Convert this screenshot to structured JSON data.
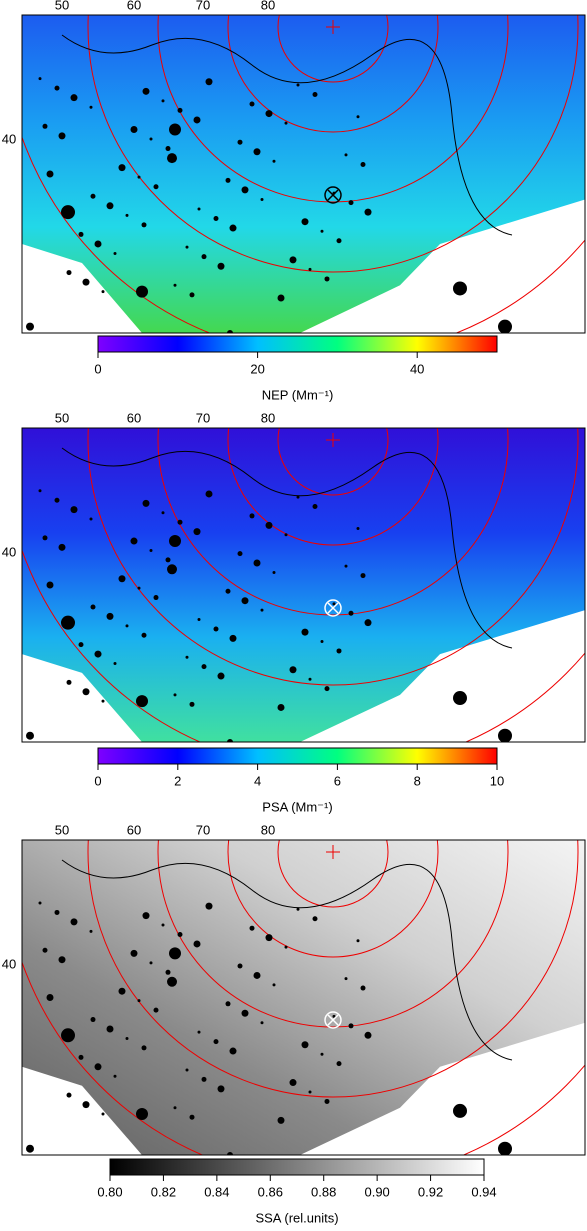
{
  "panels": [
    {
      "lon_labels": [
        "50",
        "60",
        "70",
        "80"
      ],
      "lat_label": "40",
      "colorbar": {
        "label": "NEP (Mm⁻¹)",
        "range": [
          0,
          50
        ],
        "ticks": [
          0,
          20,
          40
        ],
        "colors": [
          "#7f00ff",
          "#0000ff",
          "#00bfff",
          "#00ff80",
          "#ffff00",
          "#ff0000"
        ]
      }
    },
    {
      "lon_labels": [
        "50",
        "60",
        "70",
        "80"
      ],
      "lat_label": "40",
      "colorbar": {
        "label": "PSA (Mm⁻¹)",
        "range": [
          0,
          10
        ],
        "ticks": [
          0,
          2,
          4,
          6,
          8,
          10
        ],
        "colors": [
          "#7f00ff",
          "#0000ff",
          "#00bfff",
          "#00ff80",
          "#ffff00",
          "#ff0000"
        ]
      }
    },
    {
      "lon_labels": [
        "50",
        "60",
        "70",
        "80"
      ],
      "lat_label": "40",
      "colorbar": {
        "label": "SSA (rel.units)",
        "range": [
          0.8,
          0.94
        ],
        "ticks": [
          {
            "value": 0.8,
            "label": "0.80"
          },
          0.82,
          0.84,
          0.86,
          0.88,
          {
            "value": 0.9,
            "label": "0.90"
          },
          0.92,
          0.94
        ],
        "colors": [
          "#000000",
          "#ffffff"
        ]
      }
    }
  ]
}
